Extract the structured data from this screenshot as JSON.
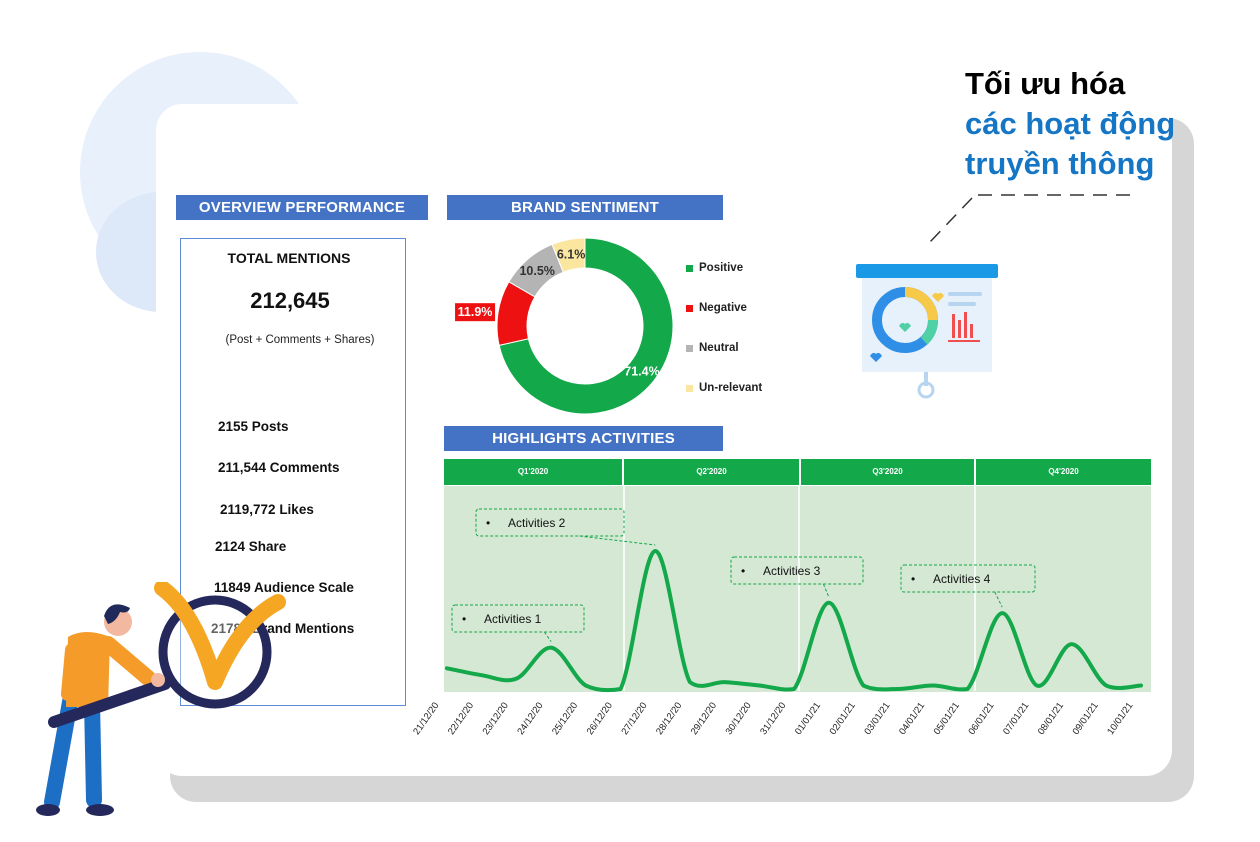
{
  "headline": {
    "line1": "Tối ưu hóa",
    "line2": "các hoạt động",
    "line3": "truyền thông",
    "line1_color": "#111111",
    "accent_color": "#1576c6"
  },
  "overview": {
    "header": "OVERVIEW PERFORMANCE",
    "total_label": "TOTAL MENTIONS",
    "total_value": "212,645",
    "total_note": "(Post + Comments + Shares)",
    "stats": [
      "2155 Posts",
      "211,544 Comments",
      "2119,772 Likes",
      "2124 Share",
      "11849 Audience Scale",
      "21783 Brand Mentions"
    ]
  },
  "sentiment": {
    "header": "BRAND SENTIMENT",
    "legend": [
      "Positive",
      "Negative",
      "Neutral",
      "Un-relevant"
    ],
    "chart_data": {
      "type": "pie",
      "categories": [
        "Positive",
        "Negative",
        "Neutral",
        "Un-relevant"
      ],
      "values": [
        71.4,
        11.9,
        10.5,
        6.1
      ],
      "labels": [
        "71.4%",
        "11.9%",
        "10.5%",
        "6.1%"
      ],
      "colors": [
        "#13a84a",
        "#ee1111",
        "#b4b4b4",
        "#fbe6a0"
      ],
      "legend": "right"
    }
  },
  "highlights": {
    "header": "HIGHLIGHTS ACTIVITIES",
    "quarters": [
      "Q1'2020",
      "Q2'2020",
      "Q3'2020",
      "Q4'2020"
    ],
    "activities": [
      "Activities 1",
      "Activities 2",
      "Activities 3",
      "Activities 4"
    ],
    "chart_data": {
      "type": "line",
      "x": [
        "21/12/20",
        "22/12/20",
        "23/12/20",
        "24/12/20",
        "25/12/20",
        "26/12/20",
        "27/12/20",
        "28/12/20",
        "29/12/20",
        "30/12/20",
        "31/12/20",
        "01/01/21",
        "02/01/21",
        "03/01/21",
        "04/01/21",
        "05/01/21",
        "06/01/21",
        "07/01/21",
        "08/01/21",
        "09/01/21",
        "10/01/21"
      ],
      "values": [
        6,
        4,
        3,
        12,
        1,
        0,
        40,
        2,
        2,
        1,
        0,
        25,
        1,
        0,
        1,
        0,
        22,
        1,
        13,
        1,
        1
      ],
      "line_color": "#13a84a",
      "background": "#d5e8d4",
      "grid": false
    }
  }
}
